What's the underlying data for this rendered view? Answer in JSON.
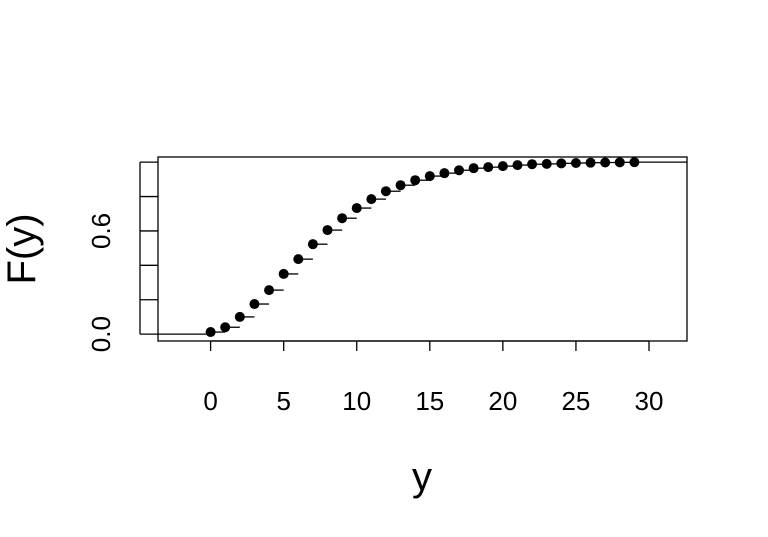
{
  "chart_data": {
    "type": "ecdf",
    "x_label": "y",
    "y_label": "F(y)",
    "x": [
      0,
      1,
      2,
      3,
      4,
      5,
      6,
      7,
      8,
      9,
      10,
      11,
      12,
      13,
      14,
      15,
      16,
      17,
      18,
      19,
      20,
      21,
      22,
      23,
      24,
      25,
      26,
      27,
      28,
      29
    ],
    "values": [
      0.012,
      0.04,
      0.1,
      0.175,
      0.256,
      0.35,
      0.436,
      0.523,
      0.605,
      0.674,
      0.733,
      0.785,
      0.831,
      0.866,
      0.895,
      0.919,
      0.936,
      0.953,
      0.965,
      0.971,
      0.977,
      0.983,
      0.988,
      0.99,
      0.993,
      0.995,
      0.997,
      0.998,
      0.999,
      1.0
    ],
    "color": "#000000",
    "xlim": [
      -3.6,
      32.6
    ],
    "ylim": [
      -0.04,
      1.03
    ],
    "xticks": [
      0,
      5,
      10,
      15,
      20,
      25,
      30
    ],
    "yticks": [
      {
        "value": 0,
        "label": "0.0"
      },
      {
        "value": 0.2,
        "label": null
      },
      {
        "value": 0.4,
        "label": null
      },
      {
        "value": 0.6,
        "label": "0.6"
      },
      {
        "value": 0.8,
        "label": null
      },
      {
        "value": 1.0,
        "label": null
      }
    ]
  }
}
